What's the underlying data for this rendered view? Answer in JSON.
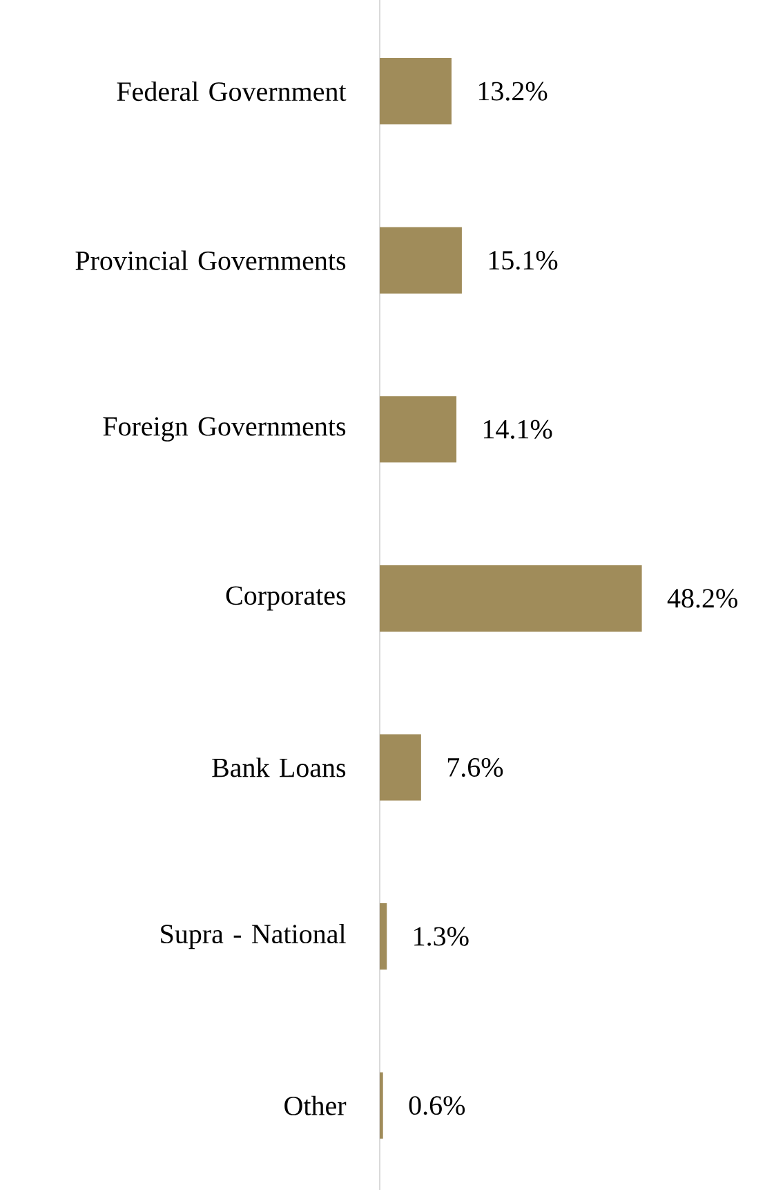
{
  "chart_data": {
    "type": "bar",
    "orientation": "horizontal",
    "color": "#a08c5a",
    "categories": [
      "Federal Government",
      "Provincial Governments",
      "Foreign Governments",
      "Corporates",
      "Bank Loans",
      "Supra - National",
      "Other"
    ],
    "values": [
      13.2,
      15.1,
      14.1,
      48.2,
      7.6,
      1.3,
      0.6
    ],
    "value_labels": [
      "13.2%",
      "15.1%",
      "14.1%",
      "48.2%",
      "7.6%",
      "1.3%",
      "0.6%"
    ]
  }
}
